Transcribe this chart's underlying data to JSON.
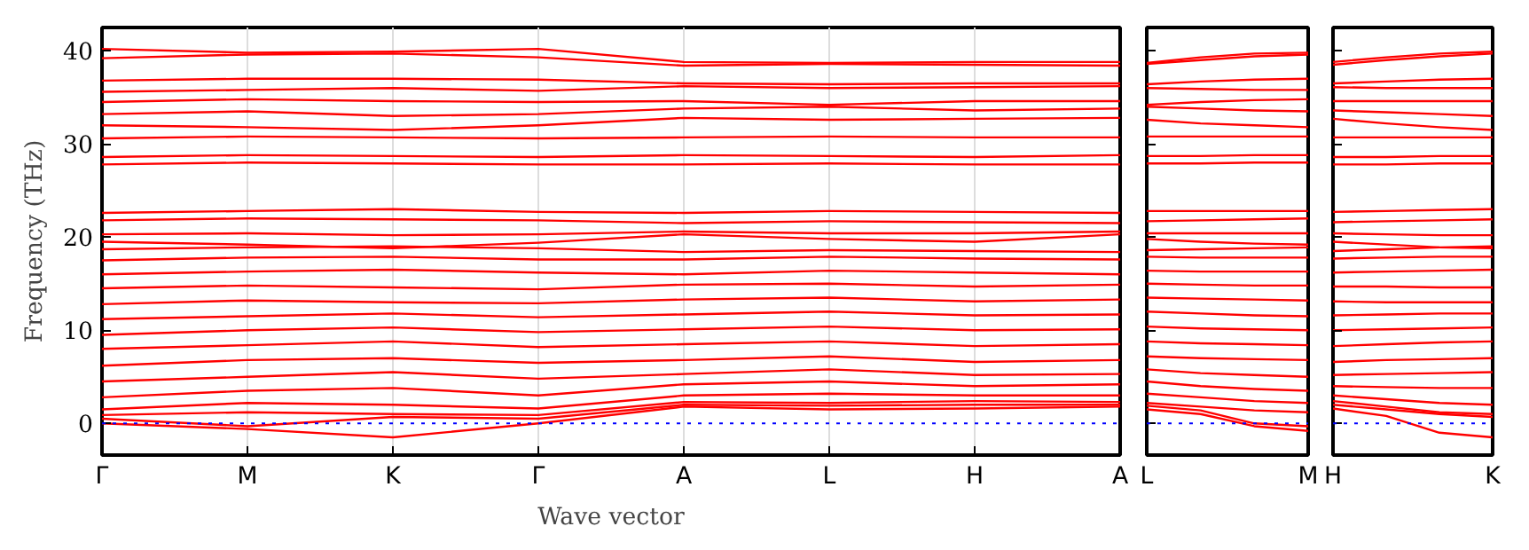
{
  "chart_data": [
    {
      "type": "line",
      "xlabel": "Wave vector",
      "ylabel": "Frequency (THz)",
      "categories": [
        "Γ",
        "M",
        "K",
        "Γ",
        "A",
        "L",
        "H",
        "A"
      ],
      "ylim": [
        -3.4,
        42.5
      ],
      "yticks": [
        0,
        10,
        20,
        30,
        40
      ],
      "grid": "x",
      "line_style": "solid",
      "ref_lines": [
        {
          "axis": "y",
          "value": 0,
          "color": "#0000ff",
          "line_style": "dotted"
        }
      ],
      "series": [
        {
          "color": "#ff0000",
          "values": [
            0,
            -0.6,
            -1.5,
            0,
            1.8,
            1.5,
            1.6,
            1.8
          ]
        },
        {
          "color": "#ff0000",
          "values": [
            0.5,
            -0.3,
            0.7,
            0.5,
            2.0,
            1.9,
            2.0,
            2.0
          ]
        },
        {
          "color": "#ff0000",
          "values": [
            0.9,
            1.2,
            1.0,
            0.9,
            2.3,
            2.2,
            2.4,
            2.3
          ]
        },
        {
          "color": "#ff0000",
          "values": [
            1.5,
            2.2,
            2.0,
            1.6,
            3.0,
            3.2,
            3.0,
            3.0
          ]
        },
        {
          "color": "#ff0000",
          "values": [
            2.8,
            3.5,
            3.8,
            3.0,
            4.2,
            4.5,
            4.0,
            4.2
          ]
        },
        {
          "color": "#ff0000",
          "values": [
            4.5,
            5.0,
            5.5,
            4.8,
            5.3,
            5.8,
            5.2,
            5.3
          ]
        },
        {
          "color": "#ff0000",
          "values": [
            6.2,
            6.8,
            7.0,
            6.5,
            6.8,
            7.2,
            6.6,
            6.8
          ]
        },
        {
          "color": "#ff0000",
          "values": [
            8.0,
            8.4,
            8.8,
            8.2,
            8.5,
            8.8,
            8.3,
            8.5
          ]
        },
        {
          "color": "#ff0000",
          "values": [
            9.5,
            10.0,
            10.3,
            9.8,
            10.1,
            10.4,
            10.0,
            10.1
          ]
        },
        {
          "color": "#ff0000",
          "values": [
            11.2,
            11.5,
            11.8,
            11.4,
            11.7,
            12.0,
            11.6,
            11.7
          ]
        },
        {
          "color": "#ff0000",
          "values": [
            12.8,
            13.2,
            13.0,
            12.9,
            13.3,
            13.5,
            13.1,
            13.3
          ]
        },
        {
          "color": "#ff0000",
          "values": [
            14.5,
            14.8,
            14.6,
            14.4,
            14.9,
            15.0,
            14.7,
            14.9
          ]
        },
        {
          "color": "#ff0000",
          "values": [
            16.0,
            16.3,
            16.5,
            16.2,
            16.0,
            16.4,
            16.2,
            16.0
          ]
        },
        {
          "color": "#ff0000",
          "values": [
            17.5,
            17.8,
            17.9,
            17.6,
            17.6,
            17.9,
            17.7,
            17.6
          ]
        },
        {
          "color": "#ff0000",
          "values": [
            18.7,
            18.9,
            19.0,
            18.8,
            18.4,
            18.6,
            18.5,
            18.4
          ]
        },
        {
          "color": "#ff0000",
          "values": [
            19.5,
            19.2,
            18.8,
            19.4,
            20.3,
            19.8,
            19.5,
            20.3
          ]
        },
        {
          "color": "#ff0000",
          "values": [
            20.3,
            20.4,
            20.2,
            20.3,
            20.6,
            20.4,
            20.4,
            20.6
          ]
        },
        {
          "color": "#ff0000",
          "values": [
            21.8,
            22.0,
            21.9,
            21.8,
            21.5,
            21.7,
            21.6,
            21.5
          ]
        },
        {
          "color": "#ff0000",
          "values": [
            22.6,
            22.8,
            23.0,
            22.7,
            22.6,
            22.8,
            22.7,
            22.6
          ]
        },
        {
          "color": "#ff0000",
          "values": [
            27.8,
            28.0,
            27.9,
            27.8,
            27.8,
            27.9,
            27.8,
            27.8
          ]
        },
        {
          "color": "#ff0000",
          "values": [
            28.6,
            28.8,
            28.7,
            28.6,
            28.8,
            28.7,
            28.6,
            28.8
          ]
        },
        {
          "color": "#ff0000",
          "values": [
            30.6,
            30.8,
            30.7,
            30.6,
            30.7,
            30.8,
            30.7,
            30.7
          ]
        },
        {
          "color": "#ff0000",
          "values": [
            32.0,
            31.8,
            31.5,
            32.0,
            32.8,
            32.6,
            32.7,
            32.8
          ]
        },
        {
          "color": "#ff0000",
          "values": [
            33.2,
            33.5,
            33.0,
            33.2,
            33.8,
            34.0,
            33.6,
            33.8
          ]
        },
        {
          "color": "#ff0000",
          "values": [
            34.5,
            34.8,
            34.6,
            34.5,
            34.6,
            34.2,
            34.6,
            34.6
          ]
        },
        {
          "color": "#ff0000",
          "values": [
            35.6,
            35.8,
            36.0,
            35.7,
            36.2,
            36.0,
            36.1,
            36.2
          ]
        },
        {
          "color": "#ff0000",
          "values": [
            36.8,
            37.0,
            37.0,
            36.9,
            36.5,
            36.4,
            36.5,
            36.5
          ]
        },
        {
          "color": "#ff0000",
          "values": [
            39.2,
            39.6,
            39.7,
            39.3,
            38.4,
            38.6,
            38.5,
            38.4
          ]
        },
        {
          "color": "#ff0000",
          "values": [
            40.2,
            39.8,
            39.9,
            40.2,
            38.8,
            38.7,
            38.8,
            38.8
          ]
        }
      ]
    },
    {
      "type": "line",
      "categories": [
        "L",
        null,
        null,
        "M"
      ],
      "ylim": [
        -3.4,
        42.5
      ],
      "yticks": [
        0,
        10,
        20,
        30,
        40
      ],
      "tick_labels": "x",
      "line_style": "solid",
      "ref_lines": [
        {
          "axis": "y",
          "value": 0,
          "color": "#0000ff",
          "line_style": "dotted"
        }
      ],
      "series": [
        {
          "color": "#ff0000",
          "values": [
            1.5,
            1.0,
            -0.3,
            -0.8
          ]
        },
        {
          "color": "#ff0000",
          "values": [
            1.9,
            1.4,
            0.0,
            -0.3
          ]
        },
        {
          "color": "#ff0000",
          "values": [
            2.2,
            1.8,
            1.4,
            1.2
          ]
        },
        {
          "color": "#ff0000",
          "values": [
            3.2,
            2.8,
            2.4,
            2.2
          ]
        },
        {
          "color": "#ff0000",
          "values": [
            4.5,
            4.0,
            3.7,
            3.5
          ]
        },
        {
          "color": "#ff0000",
          "values": [
            5.8,
            5.4,
            5.2,
            5.0
          ]
        },
        {
          "color": "#ff0000",
          "values": [
            7.2,
            7.0,
            6.9,
            6.8
          ]
        },
        {
          "color": "#ff0000",
          "values": [
            8.8,
            8.6,
            8.5,
            8.4
          ]
        },
        {
          "color": "#ff0000",
          "values": [
            10.4,
            10.2,
            10.1,
            10.0
          ]
        },
        {
          "color": "#ff0000",
          "values": [
            12.0,
            11.8,
            11.6,
            11.5
          ]
        },
        {
          "color": "#ff0000",
          "values": [
            13.5,
            13.4,
            13.3,
            13.2
          ]
        },
        {
          "color": "#ff0000",
          "values": [
            15.0,
            14.9,
            14.8,
            14.8
          ]
        },
        {
          "color": "#ff0000",
          "values": [
            16.4,
            16.3,
            16.3,
            16.3
          ]
        },
        {
          "color": "#ff0000",
          "values": [
            17.9,
            17.8,
            17.8,
            17.8
          ]
        },
        {
          "color": "#ff0000",
          "values": [
            18.6,
            18.7,
            18.8,
            18.9
          ]
        },
        {
          "color": "#ff0000",
          "values": [
            19.8,
            19.5,
            19.3,
            19.2
          ]
        },
        {
          "color": "#ff0000",
          "values": [
            20.4,
            20.4,
            20.4,
            20.4
          ]
        },
        {
          "color": "#ff0000",
          "values": [
            21.7,
            21.8,
            21.9,
            22.0
          ]
        },
        {
          "color": "#ff0000",
          "values": [
            22.8,
            22.8,
            22.8,
            22.8
          ]
        },
        {
          "color": "#ff0000",
          "values": [
            27.9,
            27.9,
            28.0,
            28.0
          ]
        },
        {
          "color": "#ff0000",
          "values": [
            28.7,
            28.7,
            28.8,
            28.8
          ]
        },
        {
          "color": "#ff0000",
          "values": [
            30.8,
            30.8,
            30.8,
            30.8
          ]
        },
        {
          "color": "#ff0000",
          "values": [
            32.6,
            32.2,
            32.0,
            31.8
          ]
        },
        {
          "color": "#ff0000",
          "values": [
            34.0,
            33.8,
            33.6,
            33.5
          ]
        },
        {
          "color": "#ff0000",
          "values": [
            34.2,
            34.5,
            34.7,
            34.8
          ]
        },
        {
          "color": "#ff0000",
          "values": [
            36.0,
            35.9,
            35.8,
            35.8
          ]
        },
        {
          "color": "#ff0000",
          "values": [
            36.4,
            36.7,
            36.9,
            37.0
          ]
        },
        {
          "color": "#ff0000",
          "values": [
            38.6,
            39.0,
            39.4,
            39.6
          ]
        },
        {
          "color": "#ff0000",
          "values": [
            38.7,
            39.3,
            39.7,
            39.8
          ]
        }
      ]
    },
    {
      "type": "line",
      "categories": [
        "H",
        null,
        null,
        "K"
      ],
      "ylim": [
        -3.4,
        42.5
      ],
      "yticks": [
        0,
        10,
        20,
        30,
        40
      ],
      "tick_labels": "x",
      "line_style": "solid",
      "ref_lines": [
        {
          "axis": "y",
          "value": 0,
          "color": "#0000ff",
          "line_style": "dotted"
        }
      ],
      "series": [
        {
          "color": "#ff0000",
          "values": [
            1.6,
            0.8,
            -1.0,
            -1.5
          ]
        },
        {
          "color": "#ff0000",
          "values": [
            2.0,
            1.5,
            1.0,
            0.7
          ]
        },
        {
          "color": "#ff0000",
          "values": [
            2.4,
            1.8,
            1.2,
            1.0
          ]
        },
        {
          "color": "#ff0000",
          "values": [
            3.0,
            2.6,
            2.2,
            2.0
          ]
        },
        {
          "color": "#ff0000",
          "values": [
            4.0,
            3.9,
            3.8,
            3.8
          ]
        },
        {
          "color": "#ff0000",
          "values": [
            5.2,
            5.3,
            5.4,
            5.5
          ]
        },
        {
          "color": "#ff0000",
          "values": [
            6.6,
            6.8,
            6.9,
            7.0
          ]
        },
        {
          "color": "#ff0000",
          "values": [
            8.3,
            8.5,
            8.7,
            8.8
          ]
        },
        {
          "color": "#ff0000",
          "values": [
            10.0,
            10.1,
            10.2,
            10.3
          ]
        },
        {
          "color": "#ff0000",
          "values": [
            11.6,
            11.7,
            11.8,
            11.8
          ]
        },
        {
          "color": "#ff0000",
          "values": [
            13.1,
            13.0,
            13.0,
            13.0
          ]
        },
        {
          "color": "#ff0000",
          "values": [
            14.7,
            14.7,
            14.6,
            14.6
          ]
        },
        {
          "color": "#ff0000",
          "values": [
            16.2,
            16.3,
            16.4,
            16.5
          ]
        },
        {
          "color": "#ff0000",
          "values": [
            17.7,
            17.8,
            17.9,
            17.9
          ]
        },
        {
          "color": "#ff0000",
          "values": [
            18.5,
            18.7,
            18.9,
            19.0
          ]
        },
        {
          "color": "#ff0000",
          "values": [
            19.5,
            19.2,
            18.9,
            18.8
          ]
        },
        {
          "color": "#ff0000",
          "values": [
            20.4,
            20.3,
            20.2,
            20.2
          ]
        },
        {
          "color": "#ff0000",
          "values": [
            21.6,
            21.7,
            21.8,
            21.9
          ]
        },
        {
          "color": "#ff0000",
          "values": [
            22.7,
            22.8,
            22.9,
            23.0
          ]
        },
        {
          "color": "#ff0000",
          "values": [
            27.8,
            27.8,
            27.9,
            27.9
          ]
        },
        {
          "color": "#ff0000",
          "values": [
            28.6,
            28.6,
            28.7,
            28.7
          ]
        },
        {
          "color": "#ff0000",
          "values": [
            30.7,
            30.7,
            30.7,
            30.7
          ]
        },
        {
          "color": "#ff0000",
          "values": [
            32.7,
            32.2,
            31.8,
            31.5
          ]
        },
        {
          "color": "#ff0000",
          "values": [
            33.6,
            33.4,
            33.2,
            33.0
          ]
        },
        {
          "color": "#ff0000",
          "values": [
            34.6,
            34.6,
            34.6,
            34.6
          ]
        },
        {
          "color": "#ff0000",
          "values": [
            36.1,
            36.0,
            36.0,
            36.0
          ]
        },
        {
          "color": "#ff0000",
          "values": [
            36.5,
            36.7,
            36.9,
            37.0
          ]
        },
        {
          "color": "#ff0000",
          "values": [
            38.5,
            39.0,
            39.4,
            39.7
          ]
        },
        {
          "color": "#ff0000",
          "values": [
            38.8,
            39.3,
            39.7,
            39.9
          ]
        }
      ]
    }
  ]
}
